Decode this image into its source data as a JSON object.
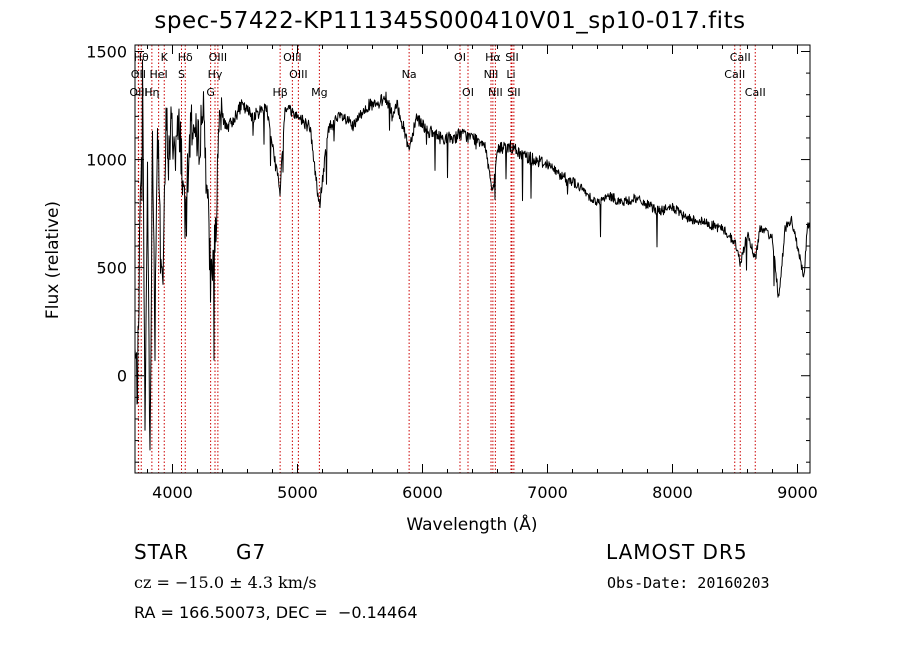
{
  "title": "spec-57422-KP111345S000410V01_sp10-017.fits",
  "info": {
    "object_class": "STAR",
    "subclass": "G7",
    "survey": "LAMOST DR5",
    "cz": "cz = −15.0 ± 4.3 km/s",
    "obs_date": "Obs-Date: 20160203",
    "radec": "RA = 166.50073, DEC =  −0.14464"
  },
  "chart_data": {
    "type": "line",
    "xlabel": "Wavelength (Å)",
    "ylabel": "Flux (relative)",
    "xlim": [
      3700,
      9100
    ],
    "ylim": [
      -450,
      1530
    ],
    "xticks": [
      4000,
      5000,
      6000,
      7000,
      8000,
      9000
    ],
    "yticks": [
      0,
      500,
      1000,
      1500
    ],
    "grid": false,
    "line_color": "#000000",
    "marker_color": "#cc0000",
    "spectral_lines": [
      {
        "label": "Hθ",
        "wavelength": 3750,
        "row": 0
      },
      {
        "label": "K",
        "wavelength": 3934,
        "row": 0
      },
      {
        "label": "Hδ",
        "wavelength": 4102,
        "row": 0
      },
      {
        "label": "OIII",
        "wavelength": 4363,
        "row": 0
      },
      {
        "label": "OIII",
        "wavelength": 4959,
        "row": 0
      },
      {
        "label": "OI",
        "wavelength": 6300,
        "row": 0
      },
      {
        "label": "Hα",
        "wavelength": 6563,
        "row": 0
      },
      {
        "label": "SII",
        "wavelength": 6716,
        "row": 0
      },
      {
        "label": "CaII",
        "wavelength": 8542,
        "row": 0
      },
      {
        "label": "OII",
        "wavelength": 3727,
        "row": 1
      },
      {
        "label": "HeI",
        "wavelength": 3889,
        "row": 1
      },
      {
        "label": "S",
        "wavelength": 4072,
        "row": 1
      },
      {
        "label": "Hγ",
        "wavelength": 4340,
        "row": 1
      },
      {
        "label": "OIII",
        "wavelength": 5007,
        "row": 1
      },
      {
        "label": "Na",
        "wavelength": 5893,
        "row": 1
      },
      {
        "label": "NII",
        "wavelength": 6548,
        "row": 1
      },
      {
        "label": "Li",
        "wavelength": 6708,
        "row": 1
      },
      {
        "label": "CaII",
        "wavelength": 8498,
        "row": 1
      },
      {
        "label": "OIII",
        "wavelength": 3729,
        "row": 2
      },
      {
        "label": "Hη",
        "wavelength": 3835,
        "row": 2
      },
      {
        "label": "G",
        "wavelength": 4305,
        "row": 2
      },
      {
        "label": "Hβ",
        "wavelength": 4861,
        "row": 2
      },
      {
        "label": "Mg",
        "wavelength": 5175,
        "row": 2
      },
      {
        "label": "OI",
        "wavelength": 6364,
        "row": 2
      },
      {
        "label": "NII",
        "wavelength": 6583,
        "row": 2
      },
      {
        "label": "SII",
        "wavelength": 6731,
        "row": 2
      },
      {
        "label": "CaII",
        "wavelength": 8662,
        "row": 2
      }
    ],
    "spectrum_anchors": [
      [
        3700,
        100
      ],
      [
        3720,
        -50
      ],
      [
        3740,
        700
      ],
      [
        3760,
        1400
      ],
      [
        3780,
        -200
      ],
      [
        3800,
        900
      ],
      [
        3820,
        -350
      ],
      [
        3840,
        1100
      ],
      [
        3860,
        200
      ],
      [
        3880,
        1200
      ],
      [
        3900,
        800
      ],
      [
        3920,
        400
      ],
      [
        3934,
        700
      ],
      [
        3950,
        1200
      ],
      [
        3968,
        1000
      ],
      [
        3990,
        1150
      ],
      [
        4020,
        1050
      ],
      [
        4060,
        1150
      ],
      [
        4100,
        700
      ],
      [
        4150,
        1200
      ],
      [
        4200,
        1050
      ],
      [
        4250,
        1250
      ],
      [
        4305,
        450
      ],
      [
        4340,
        600
      ],
      [
        4380,
        1200
      ],
      [
        4450,
        1150
      ],
      [
        4550,
        1250
      ],
      [
        4650,
        1200
      ],
      [
        4750,
        1250
      ],
      [
        4861,
        850
      ],
      [
        4900,
        1250
      ],
      [
        5000,
        1200
      ],
      [
        5100,
        1150
      ],
      [
        5175,
        780
      ],
      [
        5250,
        1150
      ],
      [
        5350,
        1200
      ],
      [
        5450,
        1150
      ],
      [
        5550,
        1250
      ],
      [
        5650,
        1250
      ],
      [
        5700,
        1300
      ],
      [
        5760,
        1200
      ],
      [
        5800,
        1250
      ],
      [
        5893,
        1050
      ],
      [
        5950,
        1200
      ],
      [
        6050,
        1130
      ],
      [
        6150,
        1100
      ],
      [
        6250,
        1100
      ],
      [
        6300,
        1120
      ],
      [
        6400,
        1100
      ],
      [
        6500,
        1080
      ],
      [
        6563,
        830
      ],
      [
        6600,
        1050
      ],
      [
        6700,
        1060
      ],
      [
        6800,
        1020
      ],
      [
        6900,
        1000
      ],
      [
        7000,
        980
      ],
      [
        7100,
        930
      ],
      [
        7200,
        900
      ],
      [
        7300,
        850
      ],
      [
        7400,
        800
      ],
      [
        7500,
        830
      ],
      [
        7600,
        800
      ],
      [
        7700,
        820
      ],
      [
        7800,
        790
      ],
      [
        7900,
        760
      ],
      [
        8000,
        780
      ],
      [
        8100,
        730
      ],
      [
        8200,
        720
      ],
      [
        8300,
        700
      ],
      [
        8400,
        680
      ],
      [
        8498,
        620
      ],
      [
        8542,
        520
      ],
      [
        8600,
        660
      ],
      [
        8662,
        540
      ],
      [
        8700,
        680
      ],
      [
        8800,
        640
      ],
      [
        8850,
        350
      ],
      [
        8900,
        680
      ],
      [
        8950,
        720
      ],
      [
        9000,
        600
      ],
      [
        9050,
        450
      ],
      [
        9080,
        700
      ],
      [
        9100,
        680
      ]
    ]
  }
}
